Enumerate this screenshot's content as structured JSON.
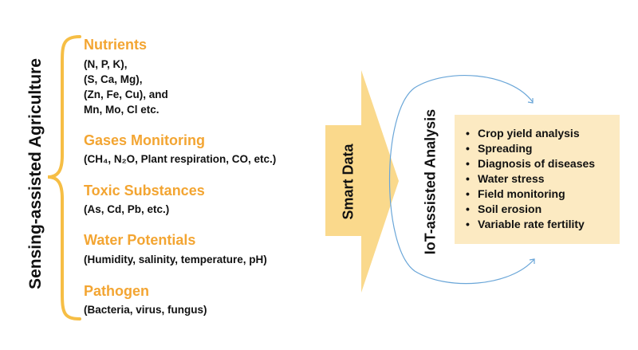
{
  "left": {
    "title": "Sensing-assisted Agriculture",
    "categories": [
      {
        "heading": "Nutrients",
        "lines": [
          "(N, P, K),",
          "(S, Ca, Mg),",
          "(Zn, Fe, Cu), and",
          "Mn, Mo, Cl etc."
        ]
      },
      {
        "heading": "Gases Monitoring",
        "lines": [
          "(CH₄, N₂O, Plant respiration, CO, etc.)"
        ]
      },
      {
        "heading": "Toxic Substances",
        "lines": [
          "(As, Cd, Pb, etc.)"
        ]
      },
      {
        "heading": "Water Potentials",
        "lines": [
          "(Humidity, salinity, temperature, pH)"
        ]
      },
      {
        "heading": "Pathogen",
        "lines": [
          "(Bacteria, virus, fungus)"
        ]
      }
    ]
  },
  "arrow": {
    "label": "Smart Data"
  },
  "analysis": {
    "title": "IoT-assisted Analysis",
    "bullet": "•",
    "items": [
      "Crop yield analysis",
      "Spreading",
      "Diagnosis of diseases",
      "Water stress",
      "Field monitoring",
      "Soil erosion",
      "Variable rate fertility"
    ]
  },
  "colors": {
    "accent": "#F3A532",
    "arrow_fill": "#FAD98C",
    "box_fill": "#FCEAC2",
    "curve": "#6AA6D8",
    "text": "#111111"
  }
}
